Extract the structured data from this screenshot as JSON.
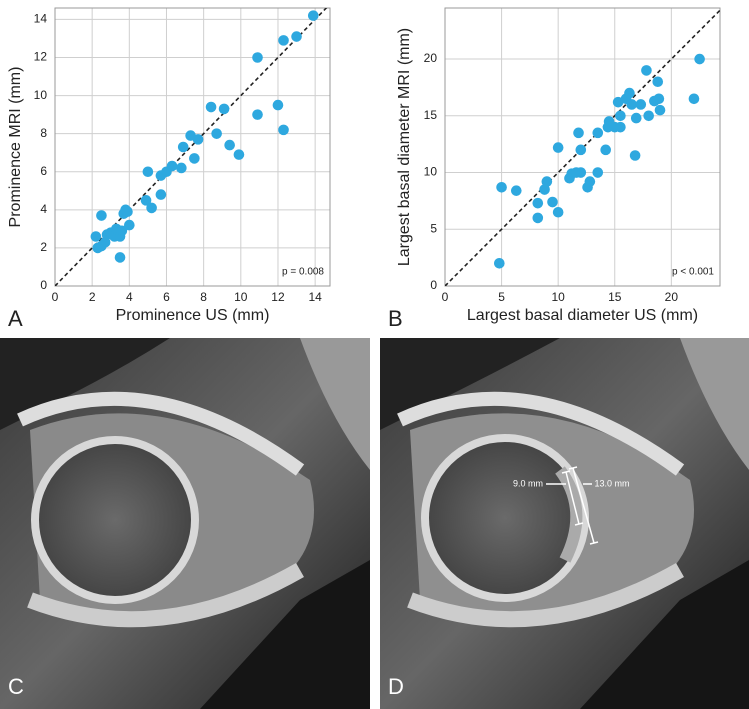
{
  "chart_data": [
    {
      "type": "scatter",
      "panel_label": "A",
      "x_label": "Prominence US (mm)",
      "y_label": "Prominence MRI (mm)",
      "annotation": "p = 0.008",
      "color": "#2ea8df",
      "grid": true,
      "identity_line": true,
      "xlim": [
        0,
        14.8
      ],
      "ylim": [
        0,
        14.6
      ],
      "xticks": [
        0,
        2,
        4,
        6,
        8,
        10,
        12,
        14
      ],
      "yticks": [
        0,
        2,
        4,
        6,
        8,
        10,
        12,
        14
      ],
      "x": [
        2.2,
        2.5,
        2.5,
        2.7,
        2.8,
        3.0,
        3.2,
        3.3,
        3.5,
        3.5,
        3.6,
        3.7,
        3.8,
        4.0,
        4.9,
        5.0,
        5.2,
        5.7,
        5.7,
        6.0,
        6.3,
        6.8,
        6.9,
        7.3,
        7.5,
        7.7,
        8.4,
        8.7,
        9.1,
        9.4,
        9.9,
        10.9,
        10.9,
        12.0,
        12.3,
        12.3,
        13.0,
        13.9,
        2.3,
        3.9
      ],
      "values": [
        2.6,
        3.7,
        2.1,
        2.3,
        2.7,
        2.8,
        2.6,
        3.0,
        2.6,
        1.5,
        2.9,
        3.8,
        4.0,
        3.2,
        4.5,
        6.0,
        4.1,
        4.8,
        5.8,
        6.0,
        6.3,
        6.2,
        7.3,
        7.9,
        6.7,
        7.7,
        9.4,
        8.0,
        9.3,
        7.4,
        6.9,
        9.0,
        12.0,
        9.5,
        8.2,
        12.9,
        13.1,
        14.2,
        2.0,
        3.9
      ]
    },
    {
      "type": "scatter",
      "panel_label": "B",
      "x_label": "Largest basal diameter US (mm)",
      "y_label": "Largest basal diameter MRI (mm)",
      "annotation": "p < 0.001",
      "color": "#2ea8df",
      "grid": true,
      "identity_line": true,
      "xlim": [
        0,
        24.3
      ],
      "ylim": [
        0,
        24.5
      ],
      "xticks": [
        0,
        5,
        10,
        15,
        20
      ],
      "yticks": [
        0,
        5,
        10,
        15,
        20
      ],
      "x": [
        4.8,
        5.0,
        6.3,
        8.2,
        8.2,
        8.8,
        9.0,
        9.5,
        10.0,
        10.0,
        11.0,
        11.2,
        11.6,
        11.8,
        12.0,
        12.0,
        12.6,
        12.8,
        13.5,
        13.5,
        14.2,
        14.4,
        14.5,
        15.0,
        15.3,
        15.5,
        15.5,
        16.0,
        16.3,
        16.5,
        16.8,
        16.9,
        17.3,
        17.8,
        18.0,
        18.5,
        18.8,
        18.9,
        19.0,
        22.0,
        22.5
      ],
      "values": [
        2.0,
        8.7,
        8.4,
        6.0,
        7.3,
        8.5,
        9.2,
        7.4,
        6.5,
        12.2,
        9.5,
        9.9,
        10.0,
        13.5,
        12.0,
        10.0,
        8.7,
        9.2,
        10.0,
        13.5,
        12.0,
        14.0,
        14.5,
        14.0,
        16.2,
        14.0,
        15.0,
        16.5,
        17.0,
        16.0,
        11.5,
        14.8,
        16.0,
        19.0,
        15.0,
        16.3,
        18.0,
        16.5,
        15.5,
        16.5,
        20.0
      ]
    }
  ],
  "images": [
    {
      "panel_label": "C"
    },
    {
      "panel_label": "D",
      "annotations": [
        "9.0 mm",
        "13.0 mm"
      ]
    }
  ]
}
